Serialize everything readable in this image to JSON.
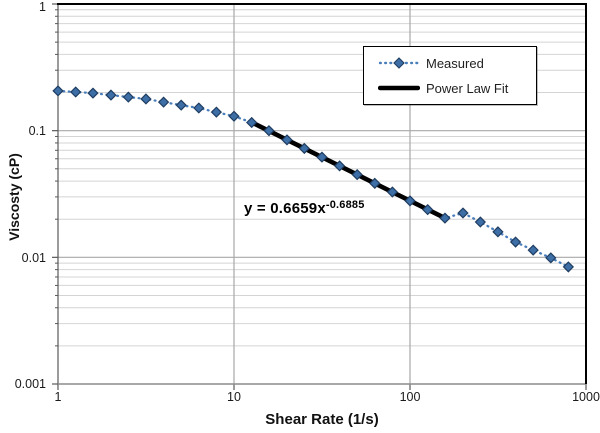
{
  "chart_data": {
    "type": "scatter",
    "title": "",
    "xlabel": "Shear Rate (1/s)",
    "ylabel": "Viscosty (cP)",
    "x_scale": "log",
    "y_scale": "log",
    "xlim": [
      1,
      1000
    ],
    "ylim": [
      0.001,
      1
    ],
    "x_ticks": [
      "1",
      "10",
      "100",
      "1000"
    ],
    "y_ticks": [
      "1",
      "0.1",
      "0.01",
      "0.001"
    ],
    "grid": "log major and minor horizontal, major vertical",
    "legend_position": "inside top-right",
    "series": [
      {
        "name": "Measured",
        "style": "dotted line with diamond markers",
        "x": [
          1.0,
          1.26,
          1.58,
          2.0,
          2.51,
          3.16,
          3.98,
          5.01,
          6.31,
          7.94,
          10.0,
          12.6,
          15.8,
          20.0,
          25.1,
          31.6,
          39.8,
          50.1,
          63.1,
          79.4,
          100.0,
          126.0,
          158.0,
          200.0,
          251.0,
          316.0,
          398.0,
          501.0,
          631.0,
          794.0
        ],
        "y": [
          0.206,
          0.202,
          0.198,
          0.191,
          0.184,
          0.178,
          0.168,
          0.159,
          0.151,
          0.14,
          0.13,
          0.116,
          0.1,
          0.0846,
          0.0724,
          0.0618,
          0.0527,
          0.045,
          0.0384,
          0.0328,
          0.0279,
          0.0238,
          0.0204,
          0.0224,
          0.019,
          0.0159,
          0.0132,
          0.0114,
          0.0099,
          0.0084
        ]
      },
      {
        "name": "Power Law Fit",
        "style": "thick solid line",
        "equation": "y = 0.6659x^-0.6885",
        "coefficient": 0.6659,
        "exponent": -0.6885,
        "x_start": 12.5,
        "x_end": 160
      }
    ],
    "annotation": {
      "base": "y = 0.6659x",
      "sup": "-0.6885"
    },
    "colors": {
      "marker_fill": "#3D6EA5",
      "marker_stroke": "#1F3D61",
      "dotted_line": "#4A7EBB",
      "fit_line": "#000000",
      "grid_minor": "#D4D4D4",
      "grid_major": "#A8A8A8",
      "axis_line": "#595959",
      "plot_border": "#000000",
      "background": "#FFFFFF"
    }
  }
}
